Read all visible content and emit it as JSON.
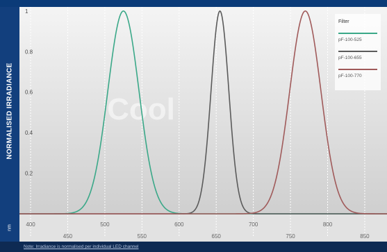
{
  "chart_data": {
    "type": "line",
    "ylabel": "NORMALISED IRRADIANCE",
    "x_unit": "nm",
    "yticks": [
      "1",
      "0.8",
      "0.6",
      "0.4",
      "0.2"
    ],
    "xticks_upper": [
      "400",
      "500",
      "600",
      "700",
      "800"
    ],
    "xticks_lower": [
      "450",
      "550",
      "650",
      "750",
      "850"
    ],
    "xlim": [
      385,
      880
    ],
    "ylim": [
      0,
      1.02
    ],
    "grid": "x",
    "legend": {
      "title": "Filter",
      "placement": "top-right",
      "entries": [
        "pF-100-525",
        "pF-100-655",
        "pF-100-770"
      ]
    },
    "series": [
      {
        "name": "pF-100-525",
        "color": "#3aa888",
        "peak": 525,
        "sigma": 21
      },
      {
        "name": "pF-100-655",
        "color": "#5a5a5a",
        "peak": 655,
        "sigma": 12
      },
      {
        "name": "pF-100-770",
        "color": "#a05a5a",
        "peak": 770,
        "sigma": 21
      }
    ],
    "watermark": "Cool",
    "footnote": "Note: Irradiance is normalised per individual LED channel"
  }
}
